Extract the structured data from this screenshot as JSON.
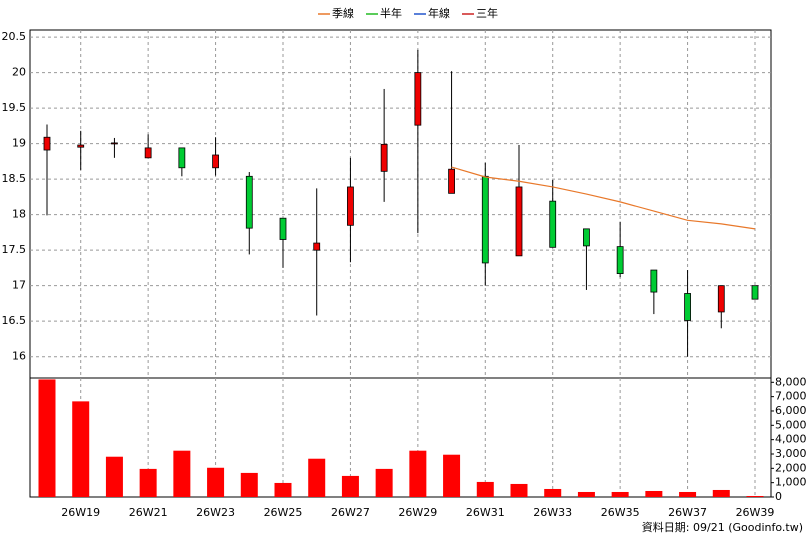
{
  "chart_data": {
    "type": "candlestick",
    "categories": [
      null,
      "26W19",
      null,
      "26W21",
      null,
      "26W23",
      null,
      "26W25",
      null,
      "26W27",
      null,
      "26W29",
      null,
      "26W31",
      null,
      "26W33",
      null,
      "26W35",
      null,
      "26W37",
      null,
      "26W39"
    ],
    "open": [
      18.91,
      18.95,
      19.0,
      18.8,
      18.94,
      18.66,
      18.54,
      17.95,
      17.5,
      17.85,
      18.61,
      19.26,
      18.3,
      18.54,
      17.42,
      18.19,
      17.8,
      17.55,
      17.22,
      16.89,
      16.63,
      17.0
    ],
    "high": [
      19.27,
      19.18,
      19.08,
      19.13,
      18.94,
      19.09,
      18.6,
      17.95,
      18.37,
      18.8,
      19.77,
      20.32,
      20.02,
      18.73,
      18.98,
      18.49,
      17.8,
      17.9,
      17.22,
      17.22,
      17.0,
      17.0
    ],
    "low": [
      17.99,
      18.63,
      18.8,
      18.8,
      18.54,
      18.55,
      17.44,
      17.25,
      16.58,
      17.33,
      18.18,
      17.74,
      18.3,
      17.0,
      17.42,
      17.54,
      16.94,
      17.12,
      16.6,
      16.0,
      16.4,
      16.81
    ],
    "close": [
      19.09,
      18.98,
      19.01,
      18.94,
      18.66,
      18.84,
      17.81,
      17.65,
      17.6,
      18.39,
      18.99,
      20.0,
      18.64,
      17.32,
      18.39,
      17.54,
      17.56,
      17.17,
      16.91,
      16.51,
      17.0,
      16.81
    ],
    "up_color": "#ee0000",
    "down_color": "#00cc33",
    "series": [
      {
        "name": "季線",
        "color": "#e8782a",
        "values": [
          null,
          null,
          null,
          null,
          null,
          null,
          null,
          null,
          null,
          null,
          null,
          null,
          18.67,
          18.53,
          18.47,
          18.39,
          18.29,
          18.18,
          18.05,
          17.92,
          17.87,
          17.8
        ]
      },
      {
        "name": "半年",
        "color": "#22bb22",
        "values": [
          null,
          null,
          null,
          null,
          null,
          null,
          null,
          null,
          null,
          null,
          null,
          null,
          null,
          null,
          null,
          null,
          null,
          null,
          null,
          null,
          null,
          null
        ]
      },
      {
        "name": "年線",
        "color": "#2255cc",
        "values": [
          null,
          null,
          null,
          null,
          null,
          null,
          null,
          null,
          null,
          null,
          null,
          null,
          null,
          null,
          null,
          null,
          null,
          null,
          null,
          null,
          null,
          null
        ]
      },
      {
        "name": "三年",
        "color": "#cc2222",
        "values": [
          null,
          null,
          null,
          null,
          null,
          null,
          null,
          null,
          null,
          null,
          null,
          null,
          null,
          null,
          null,
          null,
          null,
          null,
          null,
          null,
          null,
          null
        ]
      }
    ],
    "ylim": [
      15.7,
      20.6
    ],
    "yticks": [
      16,
      16.5,
      17,
      17.5,
      18,
      18.5,
      19,
      19.5,
      20,
      20.5
    ],
    "grid": true,
    "volume": {
      "color": "#ff0000",
      "values": [
        8200,
        6670,
        2810,
        1960,
        3230,
        2040,
        1680,
        980,
        2670,
        1470,
        1960,
        3230,
        2950,
        1050,
        910,
        560,
        350,
        350,
        420,
        350,
        490,
        70
      ],
      "ylim": [
        0,
        8300
      ],
      "yticks": [
        0,
        {
          "value": 1000,
          "label": "1,000"
        },
        {
          "value": 2000,
          "label": "2,000"
        },
        {
          "value": 3000,
          "label": "3,000"
        },
        {
          "value": 4000,
          "label": "4,000"
        },
        {
          "value": 5000,
          "label": "5,000"
        },
        {
          "value": 6000,
          "label": "6,000"
        },
        {
          "value": 7000,
          "label": "7,000"
        },
        {
          "value": 8000,
          "label": "8,000"
        }
      ]
    },
    "source": "資料日期: 09/21 (Goodinfo.tw)"
  }
}
